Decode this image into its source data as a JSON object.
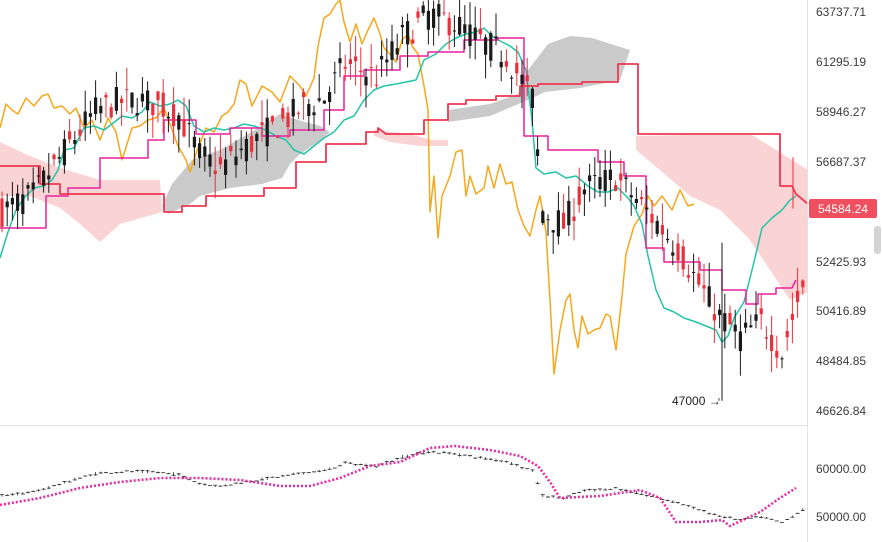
{
  "chart_data": [
    {
      "type": "candlestick",
      "panel": "main",
      "title": "",
      "xlabel": "",
      "ylabel": "",
      "ylim": [
        45800,
        64700
      ],
      "y_ticks": [
        "63737.71",
        "61295.19",
        "58946.27",
        "56687.37",
        "54584.24",
        "52425.93",
        "50416.89",
        "48484.85",
        "46626.84"
      ],
      "y_tick_values": [
        63737.71,
        61295.19,
        58946.27,
        56687.37,
        54584.24,
        52425.93,
        50416.89,
        48484.85,
        46626.84
      ],
      "log_scale": true,
      "grid": false,
      "legend": "none",
      "last_price": {
        "label": "54584.24",
        "value": 54584.24,
        "color": "#ef4f5e"
      },
      "annotations": [
        {
          "text": "47000 →",
          "value": 47000
        }
      ],
      "overlays": [
        {
          "name": "",
          "kind": "ichimoku-cloud",
          "bearish_fill": "#c7c7c7",
          "bullish_fill": "#fad4d4"
        },
        {
          "name": "",
          "kind": "line",
          "color": "#f6a71c"
        },
        {
          "name": "",
          "kind": "line",
          "color": "#24c3a7"
        },
        {
          "name": "",
          "kind": "line",
          "color": "#e8219b"
        },
        {
          "name": "",
          "kind": "line",
          "color": "#ef3750"
        }
      ],
      "colors": {
        "up": "#e8313d",
        "down": "#1a1a1a"
      }
    },
    {
      "type": "candlestick",
      "panel": "sub",
      "title": "",
      "ylim": [
        48700,
        63000
      ],
      "y_ticks": [
        "60000.00",
        "50000.00"
      ],
      "y_tick_values": [
        60000,
        50000
      ],
      "grid": false,
      "overlays": [
        {
          "name": "",
          "kind": "dotted-line",
          "color": "#ea2aa0"
        }
      ]
    }
  ]
}
